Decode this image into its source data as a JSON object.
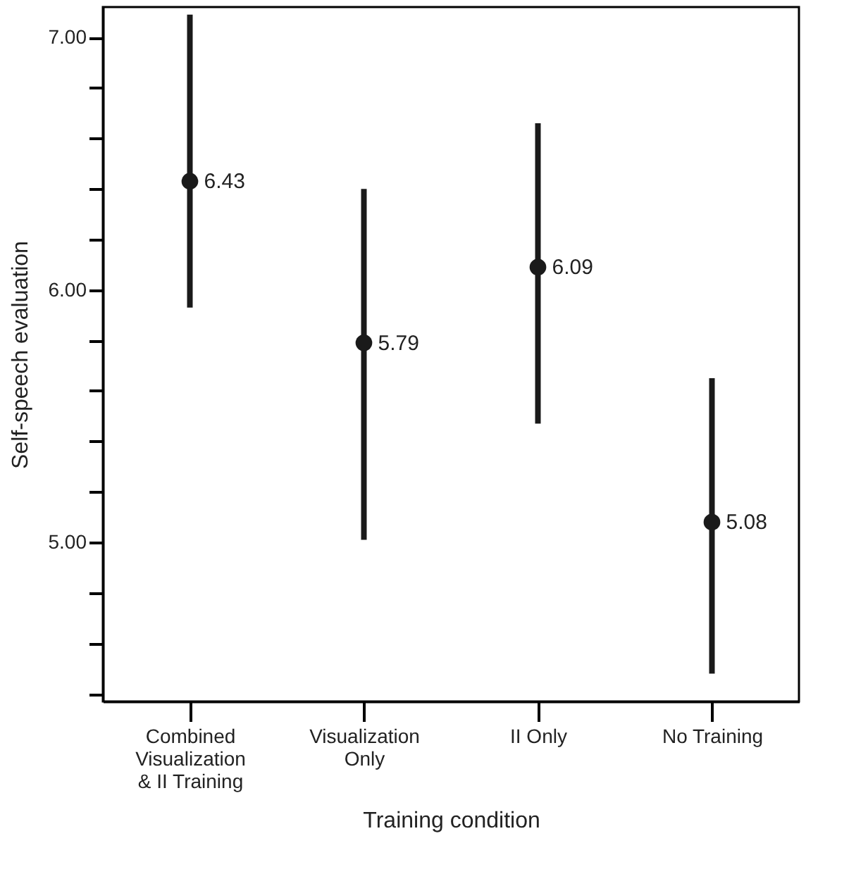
{
  "chart_data": {
    "type": "scatter",
    "xlabel": "Training condition",
    "ylabel": "Self-speech evaluation",
    "categories": [
      "Combined Visualization & II Training",
      "Visualization Only",
      "II Only",
      "No Training"
    ],
    "values": [
      6.43,
      5.79,
      6.09,
      5.08
    ],
    "errors": [
      [
        5.93,
        7.09
      ],
      [
        5.01,
        6.4
      ],
      [
        5.47,
        6.66
      ],
      [
        4.48,
        5.65
      ]
    ],
    "value_labels": [
      "6.43",
      "5.79",
      "6.09",
      "5.08"
    ],
    "color": "#1a1a1a",
    "marker": "circle",
    "grid": false,
    "ylim": [
      4.37,
      7.12
    ],
    "yticks": [
      {
        "value": 4.4,
        "label": null
      },
      {
        "value": 4.6,
        "label": null
      },
      {
        "value": 4.8,
        "label": null
      },
      {
        "value": 5.0,
        "label": "5.00"
      },
      {
        "value": 5.2,
        "label": null
      },
      {
        "value": 5.4,
        "label": null
      },
      {
        "value": 5.6,
        "label": null
      },
      {
        "value": 5.8,
        "label": null
      },
      {
        "value": 6.0,
        "label": "6.00"
      },
      {
        "value": 6.2,
        "label": null
      },
      {
        "value": 6.4,
        "label": null
      },
      {
        "value": 6.6,
        "label": null
      },
      {
        "value": 6.8,
        "label": null
      },
      {
        "value": 7.0,
        "label": "7.00"
      }
    ]
  }
}
